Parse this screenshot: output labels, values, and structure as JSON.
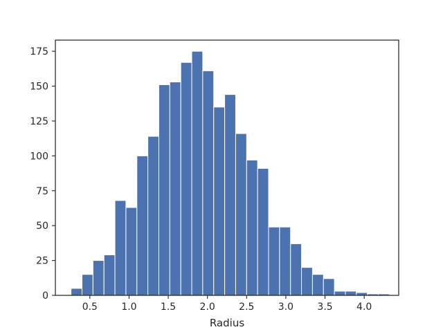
{
  "chart_data": {
    "type": "bar",
    "subtype": "histogram",
    "title": "",
    "xlabel": "Radius",
    "ylabel": "",
    "xlim": [
      0.06,
      4.44
    ],
    "ylim": [
      0,
      183
    ],
    "x_ticks": [
      0.5,
      1.0,
      1.5,
      2.0,
      2.5,
      3.0,
      3.5,
      4.0
    ],
    "x_tick_labels": [
      "0.5",
      "1.0",
      "1.5",
      "2.0",
      "2.5",
      "3.0",
      "3.5",
      "4.0"
    ],
    "y_ticks": [
      0,
      25,
      50,
      75,
      100,
      125,
      150,
      175
    ],
    "y_tick_labels": [
      "0",
      "25",
      "50",
      "75",
      "100",
      "125",
      "150",
      "175"
    ],
    "grid": false,
    "legend": "none",
    "bar_color": "#4c72b0",
    "bar_edge_color": "#ffffff",
    "axis_color": "#262626",
    "bins": [
      {
        "x0": 0.26,
        "x1": 0.4,
        "count": 5
      },
      {
        "x0": 0.4,
        "x1": 0.54,
        "count": 15
      },
      {
        "x0": 0.54,
        "x1": 0.68,
        "count": 25
      },
      {
        "x0": 0.68,
        "x1": 0.82,
        "count": 29
      },
      {
        "x0": 0.82,
        "x1": 0.96,
        "count": 68
      },
      {
        "x0": 0.96,
        "x1": 1.1,
        "count": 63
      },
      {
        "x0": 1.1,
        "x1": 1.24,
        "count": 100
      },
      {
        "x0": 1.24,
        "x1": 1.38,
        "count": 114
      },
      {
        "x0": 1.38,
        "x1": 1.52,
        "count": 151
      },
      {
        "x0": 1.52,
        "x1": 1.66,
        "count": 153
      },
      {
        "x0": 1.66,
        "x1": 1.8,
        "count": 167
      },
      {
        "x0": 1.8,
        "x1": 1.94,
        "count": 175
      },
      {
        "x0": 1.94,
        "x1": 2.08,
        "count": 161
      },
      {
        "x0": 2.08,
        "x1": 2.22,
        "count": 135
      },
      {
        "x0": 2.22,
        "x1": 2.36,
        "count": 144
      },
      {
        "x0": 2.36,
        "x1": 2.5,
        "count": 116
      },
      {
        "x0": 2.5,
        "x1": 2.64,
        "count": 97
      },
      {
        "x0": 2.64,
        "x1": 2.78,
        "count": 91
      },
      {
        "x0": 2.78,
        "x1": 2.92,
        "count": 49
      },
      {
        "x0": 2.92,
        "x1": 3.06,
        "count": 49
      },
      {
        "x0": 3.06,
        "x1": 3.2,
        "count": 37
      },
      {
        "x0": 3.2,
        "x1": 3.34,
        "count": 20
      },
      {
        "x0": 3.34,
        "x1": 3.48,
        "count": 15
      },
      {
        "x0": 3.48,
        "x1": 3.62,
        "count": 12
      },
      {
        "x0": 3.62,
        "x1": 3.76,
        "count": 3
      },
      {
        "x0": 3.76,
        "x1": 3.9,
        "count": 3
      },
      {
        "x0": 3.9,
        "x1": 4.04,
        "count": 2
      },
      {
        "x0": 4.04,
        "x1": 4.18,
        "count": 1
      },
      {
        "x0": 4.18,
        "x1": 4.32,
        "count": 1
      }
    ]
  }
}
